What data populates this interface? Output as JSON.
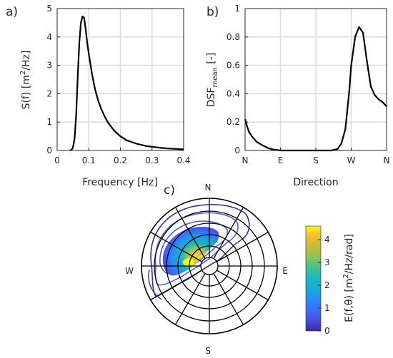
{
  "panels": {
    "a": "a)",
    "b": "b)",
    "c": "c)"
  },
  "chart_data": [
    {
      "type": "line",
      "panel": "a)",
      "xlabel": "Frequency [Hz]",
      "ylabel": "S(f) [m²/Hz]",
      "ylabel_parts": {
        "base": "S(f) [m",
        "sup": "2",
        "tail": "/Hz]"
      },
      "xlim": [
        0,
        0.4
      ],
      "ylim": [
        0,
        5
      ],
      "xticks": [
        "0",
        "0.1",
        "0.2",
        "0.3",
        "0.4"
      ],
      "yticks": [
        "0",
        "1",
        "2",
        "3",
        "4",
        "5"
      ],
      "grid": true,
      "color": "#000000",
      "x": [
        0.04,
        0.045,
        0.05,
        0.055,
        0.06,
        0.065,
        0.07,
        0.075,
        0.08,
        0.085,
        0.09,
        0.095,
        0.1,
        0.11,
        0.12,
        0.13,
        0.14,
        0.15,
        0.16,
        0.18,
        0.2,
        0.22,
        0.25,
        0.28,
        0.3,
        0.33,
        0.35,
        0.4
      ],
      "y": [
        0.0,
        0.02,
        0.1,
        0.4,
        1.2,
        2.6,
        3.8,
        4.5,
        4.72,
        4.68,
        4.3,
        3.8,
        3.4,
        2.7,
        2.15,
        1.75,
        1.45,
        1.2,
        1.0,
        0.7,
        0.5,
        0.36,
        0.24,
        0.16,
        0.13,
        0.09,
        0.07,
        0.04
      ]
    },
    {
      "type": "line",
      "panel": "b)",
      "xlabel": "Direction",
      "ylabel": "DSFmean [-]",
      "ylabel_parts": {
        "base": "DSF",
        "sub": "mean",
        "tail": " [-]"
      },
      "xlim": [
        0,
        360
      ],
      "ylim": [
        0,
        1
      ],
      "xticks": [
        "N",
        "E",
        "S",
        "W",
        "N"
      ],
      "yticks": [
        "0",
        "0.2",
        "0.4",
        "0.6",
        "0.8",
        "1"
      ],
      "grid": true,
      "color": "#000000",
      "x": [
        0,
        5,
        10,
        20,
        30,
        45,
        60,
        75,
        90,
        120,
        150,
        180,
        200,
        220,
        235,
        245,
        255,
        260,
        265,
        270,
        280,
        290,
        300,
        310,
        320,
        330,
        340,
        350,
        360
      ],
      "y": [
        0.22,
        0.17,
        0.13,
        0.09,
        0.06,
        0.035,
        0.015,
        0.005,
        0.0,
        0.0,
        0.0,
        0.0,
        0.0,
        0.0,
        0.01,
        0.05,
        0.15,
        0.28,
        0.42,
        0.6,
        0.8,
        0.87,
        0.83,
        0.63,
        0.45,
        0.39,
        0.36,
        0.34,
        0.31
      ]
    },
    {
      "type": "heatmap",
      "panel": "c)",
      "subtype": "polar-contour",
      "compass": [
        "N",
        "E",
        "S",
        "W"
      ],
      "colorbar_label": "E(f,θ) [m²/Hz/rad]",
      "colorbar_label_parts": {
        "base": "E(f,θ) [m",
        "sup": "2",
        "tail": "/Hz/rad]"
      },
      "colorbar_ticks": [
        "0",
        "1",
        "2",
        "3",
        "4"
      ],
      "clim": [
        0,
        4.6
      ],
      "colormap": [
        "#3e26a8",
        "#4a55e6",
        "#2f7bfd",
        "#1aa1e4",
        "#13b8c6",
        "#3ec491",
        "#94c353",
        "#d7ba2d",
        "#fac036",
        "#f9fb0e"
      ],
      "peak": {
        "direction_deg": 292,
        "frequency_hz": 0.09,
        "value": 4.6
      }
    }
  ]
}
